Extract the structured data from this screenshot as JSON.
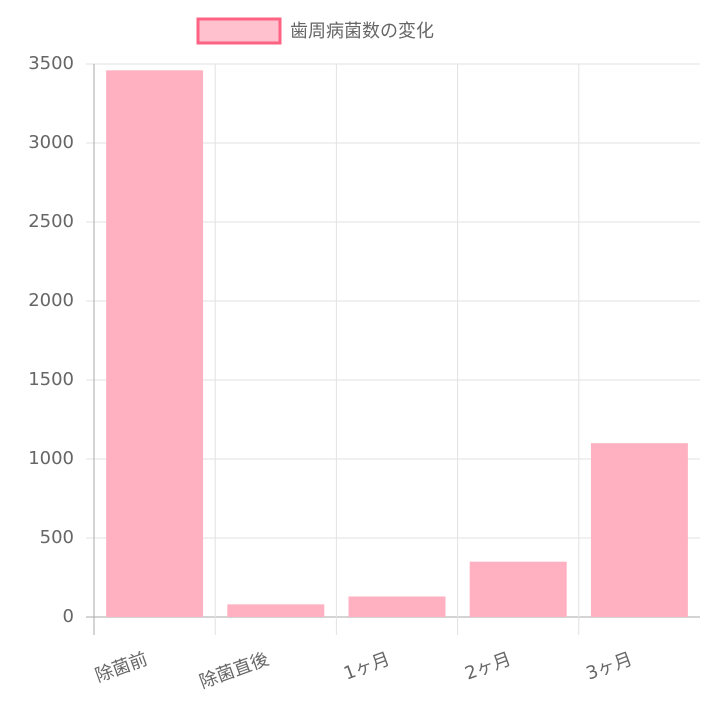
{
  "chart_data": {
    "type": "bar",
    "categories": [
      "除菌前",
      "除菌直後",
      "1ヶ月",
      "2ヶ月",
      "3ヶ月"
    ],
    "series": [
      {
        "name": "歯周病菌数の変化",
        "color": "#ffb1c1",
        "values": [
          3460,
          80,
          130,
          350,
          1100
        ]
      }
    ],
    "ylim": [
      0,
      3500
    ],
    "yticks": [
      0,
      500,
      1000,
      1500,
      2000,
      2500,
      3000,
      3500
    ],
    "grid": true,
    "legend": "top"
  }
}
